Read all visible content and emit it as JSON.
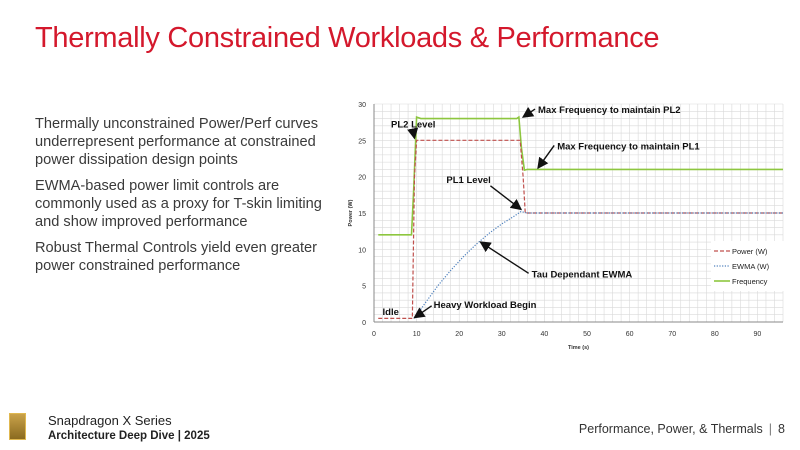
{
  "title": "Thermally Constrained Workloads & Performance",
  "bullets": [
    "Thermally unconstrained Power/Perf curves underrepresent performance at constrained power dissipation design points",
    "EWMA-based power limit controls are commonly used as a proxy for T-skin limiting and show improved performance",
    "Robust Thermal Controls yield even greater power constrained performance"
  ],
  "footer": {
    "brand": "Snapdragon X Series",
    "subtitle": "Architecture Deep Dive | 2025",
    "section": "Performance, Power, & Thermals",
    "page": "8"
  },
  "colors": {
    "title": "#d4182c",
    "power": "#c0504d",
    "ewma": "#4f81bd",
    "frequency": "#8dc63f"
  },
  "chart_data": {
    "type": "line",
    "xlabel": "Time (s)",
    "ylabel": "Power (W)",
    "xlim": [
      0,
      96
    ],
    "ylim": [
      0,
      30
    ],
    "xticks": [
      0,
      10,
      20,
      30,
      40,
      50,
      60,
      70,
      80,
      90
    ],
    "yticks": [
      0,
      5,
      10,
      15,
      20,
      25,
      30
    ],
    "grid": true,
    "legend": "right",
    "series": [
      {
        "name": "Power (W)",
        "style": "dashed",
        "x": [
          1,
          9,
          9.5,
          10,
          34.3,
          35,
          35.5,
          96
        ],
        "y": [
          0.5,
          0.5,
          20,
          25,
          25,
          20,
          15,
          15
        ]
      },
      {
        "name": "EWMA (W)",
        "style": "dotted",
        "x": [
          9.5,
          12,
          15,
          18,
          21,
          24,
          27,
          30,
          33,
          34.5,
          36,
          96
        ],
        "y": [
          0.5,
          2.6,
          5.0,
          7.1,
          9.0,
          10.7,
          12.2,
          13.5,
          14.6,
          15.2,
          15,
          15
        ]
      },
      {
        "name": "Frequency",
        "style": "solid",
        "x": [
          1,
          8.8,
          9.3,
          10,
          11,
          33.5,
          34,
          34.6,
          35.3,
          36,
          96
        ],
        "y": [
          12,
          12,
          18,
          28.2,
          28,
          28,
          28.2,
          24,
          20.9,
          21,
          21
        ]
      }
    ],
    "annotations": [
      {
        "text": "PL2 Level",
        "x": 4,
        "y": 27.3,
        "ax": 9.5,
        "ay": 25.3
      },
      {
        "text": "Max Frequency to maintain PL2",
        "x": 38.5,
        "y": 29.3,
        "ax": 35,
        "ay": 28.2
      },
      {
        "text": "Max Frequency to maintain PL1",
        "x": 43,
        "y": 24.3,
        "ax": 38.5,
        "ay": 21.2
      },
      {
        "text": "PL1 Level",
        "x": 17,
        "y": 19.7,
        "ax": 34.5,
        "ay": 15.5
      },
      {
        "text": "Tau Dependant EWMA",
        "x": 37,
        "y": 6.7,
        "ax": 25,
        "ay": 11
      },
      {
        "text": "Heavy Workload Begin",
        "x": 14,
        "y": 2.5,
        "ax": 9.5,
        "ay": 0.6
      },
      {
        "text": "Idle",
        "x": 2,
        "y": 1.5
      }
    ]
  }
}
